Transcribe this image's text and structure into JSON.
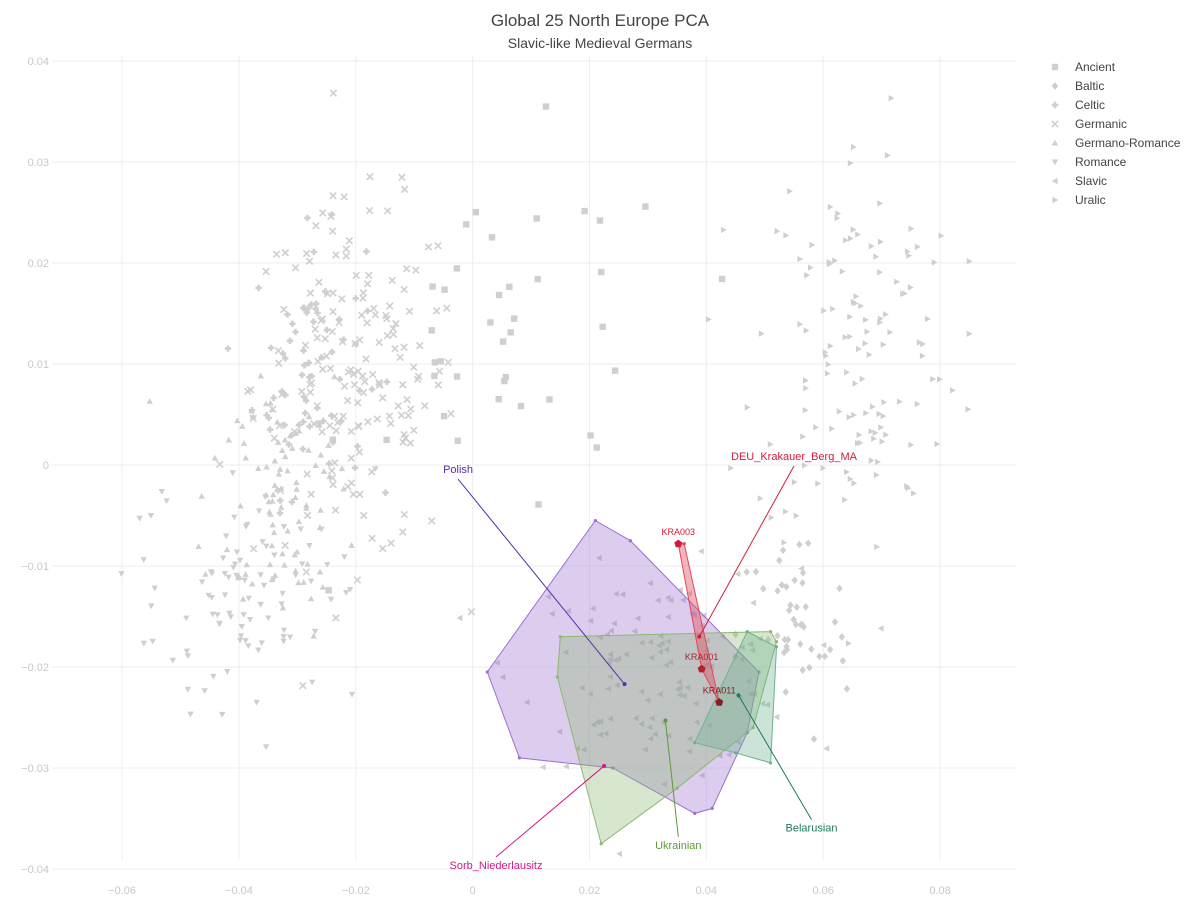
{
  "chart_data": {
    "type": "scatter",
    "title": "Global 25 North Europe PCA",
    "subtitle": "Slavic-like Medieval Germans",
    "xlabel": "",
    "ylabel": "",
    "xlim": [
      -0.072,
      0.093
    ],
    "ylim": [
      -0.0405,
      0.0405
    ],
    "x_ticks": [
      -0.06,
      -0.04,
      -0.02,
      0,
      0.02,
      0.04,
      0.06,
      0.08
    ],
    "x_tick_labels": [
      "−0.06",
      "−0.04",
      "−0.02",
      "0",
      "0.02",
      "0.04",
      "0.06",
      "0.08"
    ],
    "y_ticks": [
      -0.04,
      -0.03,
      -0.02,
      -0.01,
      0,
      0.01,
      0.02,
      0.03,
      0.04
    ],
    "y_tick_labels": [
      "−0.04",
      "−0.03",
      "−0.02",
      "−0.01",
      "0",
      "0.01",
      "0.02",
      "0.03",
      "0.04"
    ],
    "grid": true,
    "legend_position": "top-right",
    "background_color": "#cfcfcf",
    "legend": [
      {
        "name": "Ancient",
        "symbol": "square"
      },
      {
        "name": "Baltic",
        "symbol": "diamond"
      },
      {
        "name": "Celtic",
        "symbol": "cross"
      },
      {
        "name": "Germanic",
        "symbol": "x"
      },
      {
        "name": "Germano-Romance",
        "symbol": "triangle-up"
      },
      {
        "name": "Romance",
        "symbol": "triangle-down"
      },
      {
        "name": "Slavic",
        "symbol": "triangle-left"
      },
      {
        "name": "Uralic",
        "symbol": "triangle-right"
      }
    ],
    "background_clusters": [
      {
        "name": "Romance",
        "symbol": "triangle-down",
        "center": [
          -0.04,
          -0.012
        ],
        "spread": [
          0.011,
          0.008
        ],
        "n": 90
      },
      {
        "name": "Germano-Romance",
        "symbol": "triangle-up",
        "center": [
          -0.033,
          -0.002
        ],
        "spread": [
          0.008,
          0.009
        ],
        "n": 90
      },
      {
        "name": "Celtic",
        "symbol": "cross",
        "center": [
          -0.028,
          0.01
        ],
        "spread": [
          0.006,
          0.008
        ],
        "n": 70
      },
      {
        "name": "Germanic",
        "symbol": "x",
        "center": [
          -0.02,
          0.008
        ],
        "spread": [
          0.011,
          0.011
        ],
        "n": 170
      },
      {
        "name": "Ancient",
        "symbol": "square",
        "center": [
          0.008,
          0.012
        ],
        "spread": [
          0.018,
          0.012
        ],
        "n": 40
      },
      {
        "name": "Slavic",
        "symbol": "triangle-left",
        "center": [
          0.032,
          -0.02
        ],
        "spread": [
          0.015,
          0.006
        ],
        "n": 120
      },
      {
        "name": "Baltic",
        "symbol": "diamond",
        "center": [
          0.055,
          -0.017
        ],
        "spread": [
          0.006,
          0.007
        ],
        "n": 45
      },
      {
        "name": "Uralic",
        "symbol": "triangle-right",
        "center": [
          0.066,
          0.012
        ],
        "spread": [
          0.011,
          0.013
        ],
        "n": 130
      }
    ],
    "hulls": [
      {
        "name": "Polish",
        "color": "#9b6fd2",
        "fill_opacity": 0.35,
        "points": [
          [
            0.021,
            -0.0055
          ],
          [
            0.027,
            -0.0075
          ],
          [
            0.049,
            -0.0205
          ],
          [
            0.047,
            -0.0265
          ],
          [
            0.041,
            -0.034
          ],
          [
            0.038,
            -0.0345
          ],
          [
            0.024,
            -0.03
          ],
          [
            0.008,
            -0.029
          ],
          [
            0.0025,
            -0.0205
          ]
        ]
      },
      {
        "name": "Ukrainian",
        "color": "#8db872",
        "fill_opacity": 0.35,
        "points": [
          [
            0.015,
            -0.017
          ],
          [
            0.051,
            -0.0165
          ],
          [
            0.052,
            -0.0175
          ],
          [
            0.048,
            -0.026
          ],
          [
            0.035,
            -0.032
          ],
          [
            0.022,
            -0.0375
          ],
          [
            0.0145,
            -0.021
          ]
        ]
      },
      {
        "name": "Belarusian",
        "color": "#6db18f",
        "fill_opacity": 0.35,
        "points": [
          [
            0.047,
            -0.0165
          ],
          [
            0.052,
            -0.018
          ],
          [
            0.051,
            -0.0295
          ],
          [
            0.045,
            -0.0285
          ],
          [
            0.038,
            -0.0275
          ]
        ]
      },
      {
        "name": "DEU_Krakauer_Berg_MA",
        "color": "#e0455a",
        "fill_opacity": 0.4,
        "points": [
          [
            0.0352,
            -0.0078
          ],
          [
            0.0392,
            -0.0202
          ],
          [
            0.0422,
            -0.0235
          ],
          [
            0.0362,
            -0.0078
          ]
        ]
      }
    ],
    "group_labels": [
      {
        "name": "Polish",
        "color": "#5a2ea6",
        "label_at": [
          -0.0025,
          -0.0008
        ],
        "anchor_point": [
          0.026,
          -0.0217
        ]
      },
      {
        "name": "DEU_Krakauer_Berg_MA",
        "color": "#d01c3a",
        "label_at": [
          0.055,
          0.0005
        ],
        "anchor_point": [
          0.0388,
          -0.017
        ]
      },
      {
        "name": "Sorb_Niederlausitz",
        "color": "#d6168a",
        "label_at": [
          0.004,
          -0.04
        ],
        "anchor_point": [
          0.0225,
          -0.0298
        ]
      },
      {
        "name": "Ukrainian",
        "color": "#5c9a35",
        "label_at": [
          0.0352,
          -0.038
        ],
        "anchor_point": [
          0.033,
          -0.0253
        ]
      },
      {
        "name": "Belarusian",
        "color": "#1f7a5c",
        "label_at": [
          0.058,
          -0.0363
        ],
        "anchor_point": [
          0.0455,
          -0.0228
        ]
      }
    ],
    "samples": [
      {
        "label": "KRA003",
        "x": 0.0352,
        "y": -0.0078,
        "color": "#d01c3a"
      },
      {
        "label": "KRA001",
        "x": 0.0392,
        "y": -0.0202,
        "color": "#b5202e"
      },
      {
        "label": "KRA011",
        "x": 0.0422,
        "y": -0.0235,
        "color": "#8e1a24"
      }
    ]
  }
}
